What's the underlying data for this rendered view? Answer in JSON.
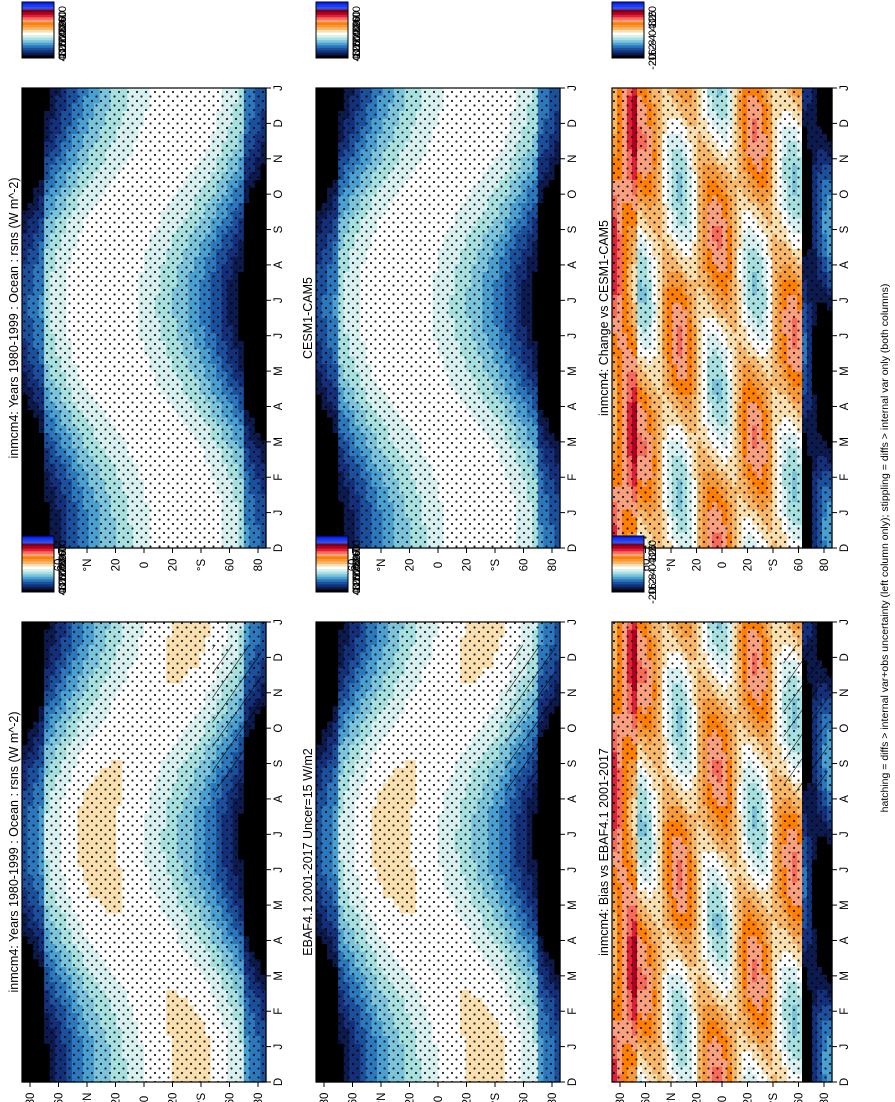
{
  "figure": {
    "footnote": "hatching = diffs > internal var+obs uncertainty (left column only); stippling = diffs > internal var only (both columns)"
  },
  "month_labels": [
    "D",
    "J",
    "F",
    "M",
    "A",
    "M",
    "J",
    "J",
    "A",
    "S",
    "O",
    "N",
    "D",
    "J"
  ],
  "lat_labels": [
    "80",
    "60",
    "°N",
    "20",
    "0",
    "20",
    "°S",
    "60",
    "80"
  ],
  "colorbars": {
    "abs": {
      "labels": [
        "400",
        "360",
        "320",
        "280",
        "240",
        "200",
        "160",
        "120",
        "80",
        "40",
        "0"
      ],
      "colors": [
        "#0a1fff",
        "#1a3cf0",
        "#3050e8",
        "#7a0014",
        "#b00020",
        "#e0203a",
        "#f86a5a",
        "#f8a080",
        "#ff7f00",
        "#f59b3b",
        "#f7b86c",
        "#fae0b0",
        "#ffffff",
        "#d8f0f0",
        "#a8e0e0",
        "#7cc4dc",
        "#4aa0d0",
        "#2c78bc",
        "#1a509c",
        "#15307a",
        "#0c1a4e",
        "#000000"
      ]
    },
    "diff": {
      "labels": [
        "20",
        "16",
        "12",
        "8",
        "4",
        "0",
        "-4",
        "-8",
        "-12",
        "-16",
        "-20"
      ],
      "colors": [
        "#0a1fff",
        "#1a3cf0",
        "#3050e8",
        "#7a0014",
        "#b00020",
        "#e0203a",
        "#f86a5a",
        "#f8a080",
        "#ff7f00",
        "#f59b3b",
        "#f7b86c",
        "#fae0b0",
        "#ffffff",
        "#d8f0f0",
        "#a8e0e0",
        "#7cc4dc",
        "#4aa0d0",
        "#2c78bc",
        "#1a509c",
        "#15307a",
        "#0c1a4e",
        "#000000"
      ]
    }
  },
  "chart_data": [
    {
      "type": "heatmap",
      "panel": "top-right",
      "title": "inmcm4: Years 1980-1999 : Ocean : rsns (W m^-2)",
      "x_categories": [
        "D",
        "J",
        "F",
        "M",
        "A",
        "M",
        "J",
        "J",
        "A",
        "S",
        "O",
        "N",
        "D",
        "J"
      ],
      "y_ticks": [
        "80",
        "60",
        "°N",
        "20",
        "0",
        "20",
        "°S",
        "60",
        "80"
      ],
      "colorbar": "abs",
      "stippling": true,
      "hatching": false
    },
    {
      "type": "heatmap",
      "panel": "top-left",
      "title": "inmcm4: Years 1980-1999 : Ocean : rsns (W m^-2)",
      "x_categories": [
        "D",
        "J",
        "F",
        "M",
        "A",
        "M",
        "J",
        "J",
        "A",
        "S",
        "O",
        "N",
        "D",
        "J"
      ],
      "y_ticks": [
        "80",
        "60",
        "°N",
        "20",
        "0",
        "20",
        "°S",
        "60",
        "80"
      ],
      "colorbar": "abs",
      "stippling": true,
      "hatching": true
    },
    {
      "type": "heatmap",
      "panel": "middle-right",
      "title": "CESM1-CAM5",
      "x_categories": [
        "D",
        "J",
        "F",
        "M",
        "A",
        "M",
        "J",
        "J",
        "A",
        "S",
        "O",
        "N",
        "D",
        "J"
      ],
      "y_ticks": [
        "80",
        "60",
        "°N",
        "20",
        "0",
        "20",
        "°S",
        "60",
        "80"
      ],
      "colorbar": "abs",
      "stippling": true,
      "hatching": false
    },
    {
      "type": "heatmap",
      "panel": "middle-left",
      "title": "EBAF4.1 2001-2017 Uncer=15 W/m2",
      "x_categories": [
        "D",
        "J",
        "F",
        "M",
        "A",
        "M",
        "J",
        "J",
        "A",
        "S",
        "O",
        "N",
        "D",
        "J"
      ],
      "y_ticks": [
        "80",
        "60",
        "°N",
        "20",
        "0",
        "20",
        "°S",
        "60",
        "80"
      ],
      "colorbar": "abs",
      "stippling": true,
      "hatching": true
    },
    {
      "type": "heatmap",
      "panel": "bottom-right",
      "title": "inmcm4: Change vs CESM1-CAM5",
      "x_categories": [
        "D",
        "J",
        "F",
        "M",
        "A",
        "M",
        "J",
        "J",
        "A",
        "S",
        "O",
        "N",
        "D",
        "J"
      ],
      "y_ticks": [
        "80",
        "60",
        "°N",
        "20",
        "0",
        "20",
        "°S",
        "60",
        "80"
      ],
      "colorbar": "diff",
      "stippling": true,
      "hatching": false
    },
    {
      "type": "heatmap",
      "panel": "bottom-left",
      "title": "inmcm4: Bias vs EBAF4.1 2001-2017",
      "x_categories": [
        "D",
        "J",
        "F",
        "M",
        "A",
        "M",
        "J",
        "J",
        "A",
        "S",
        "O",
        "N",
        "D",
        "J"
      ],
      "y_ticks": [
        "80",
        "60",
        "°N",
        "20",
        "0",
        "20",
        "°S",
        "60",
        "80"
      ],
      "colorbar": "diff",
      "stippling": true,
      "hatching": true
    }
  ]
}
